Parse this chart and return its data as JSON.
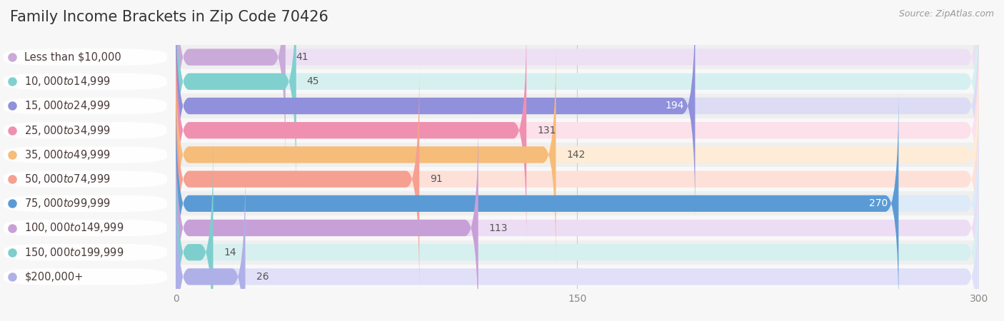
{
  "title": "Family Income Brackets in Zip Code 70426",
  "source": "Source: ZipAtlas.com",
  "categories": [
    "Less than $10,000",
    "$10,000 to $14,999",
    "$15,000 to $24,999",
    "$25,000 to $34,999",
    "$35,000 to $49,999",
    "$50,000 to $74,999",
    "$75,000 to $99,999",
    "$100,000 to $149,999",
    "$150,000 to $199,999",
    "$200,000+"
  ],
  "values": [
    41,
    45,
    194,
    131,
    142,
    91,
    270,
    113,
    14,
    26
  ],
  "bar_colors": [
    "#caaad8",
    "#80d0d0",
    "#9090dc",
    "#f090b0",
    "#f5bc7a",
    "#f5a090",
    "#5b9bd5",
    "#c8a0d8",
    "#7ecece",
    "#b0b0e8"
  ],
  "bar_bg_colors": [
    "#ede0f5",
    "#d6f0f0",
    "#dcdcf5",
    "#fce0ea",
    "#feecd6",
    "#fde0d8",
    "#ddeaf8",
    "#ecddf5",
    "#d6f0f0",
    "#e0e0f8"
  ],
  "xlim": [
    0,
    300
  ],
  "xticks": [
    0,
    150,
    300
  ],
  "background_color": "#f7f7f7",
  "row_bg_colors": [
    "#f0f0f0",
    "#fafafa",
    "#f0f0f0",
    "#fafafa",
    "#f0f0f0",
    "#fafafa",
    "#f0f0f0",
    "#fafafa",
    "#f0f0f0",
    "#fafafa"
  ],
  "title_fontsize": 15,
  "label_fontsize": 10.5,
  "value_fontsize": 10
}
